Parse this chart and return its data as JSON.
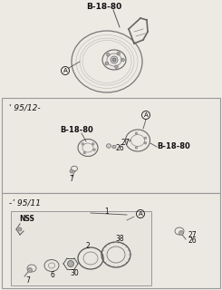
{
  "bg_color": "#edeae4",
  "box_color": "#f0ede8",
  "border_color": "#999999",
  "text_color": "#111111",
  "line_color": "#555555",
  "part_color": "#bbbbbb",
  "part_edge": "#555555",
  "s1_label": "B-18-80",
  "s1_A": "A",
  "s2_header": "' 95/12-",
  "s2_label1": "B-18-80",
  "s2_label2": "B-18-80",
  "s2_A": "A",
  "s2_27": "27",
  "s2_26": "26",
  "s2_7": "7",
  "s3_header": "-’ 95/11",
  "s3_NSS": "NSS",
  "s3_1": "1",
  "s3_2": "2",
  "s3_38": "38",
  "s3_30": "30",
  "s3_6": "6",
  "s3_7": "7",
  "s3_A": "A",
  "s3_27": "27",
  "s3_26": "26"
}
